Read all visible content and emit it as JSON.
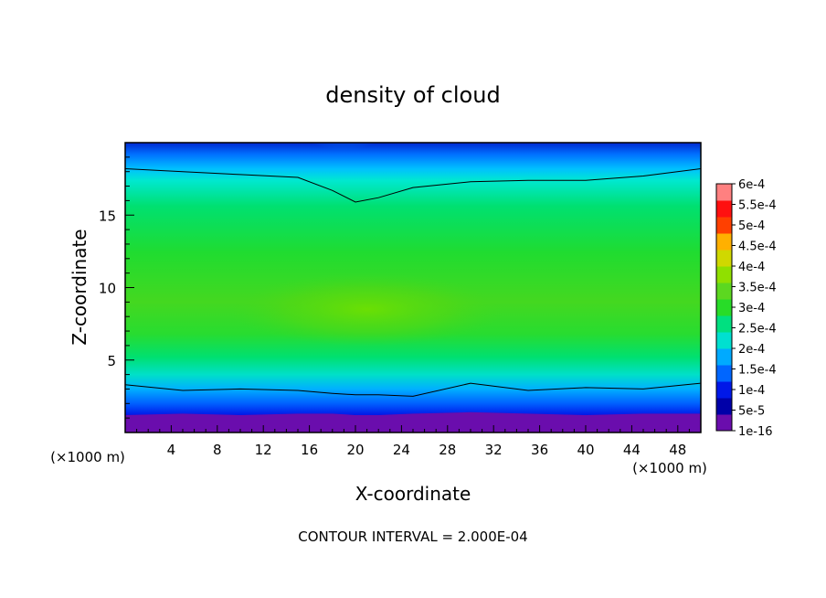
{
  "chart_data": {
    "type": "heatmap",
    "title": "density of cloud",
    "xlabel": "X-coordinate",
    "ylabel": "Z-coordinate",
    "x_unit": "(×1000 m)",
    "y_unit": "(×1000 m)",
    "xlim": [
      0,
      50
    ],
    "ylim": [
      0,
      20
    ],
    "x_ticks": [
      4,
      8,
      12,
      16,
      20,
      24,
      28,
      32,
      36,
      40,
      44,
      48
    ],
    "y_ticks": [
      5,
      10,
      15
    ],
    "colorbar": {
      "labels": [
        "1e-16",
        "5e-5",
        "1e-4",
        "1.5e-4",
        "2e-4",
        "2.5e-4",
        "3e-4",
        "3.5e-4",
        "4e-4",
        "4.5e-4",
        "5e-4",
        "5.5e-4",
        "6e-4"
      ],
      "colors": [
        "#6a0dad",
        "#0000a8",
        "#0018e8",
        "#0066ff",
        "#00aaff",
        "#00e0d0",
        "#00e080",
        "#28dc28",
        "#5cd820",
        "#90e000",
        "#d0d800",
        "#ffb000",
        "#ff4000",
        "#ff1010",
        "#ff8080"
      ]
    },
    "field": {
      "x": [
        0,
        5,
        10,
        15,
        18,
        20,
        22,
        25,
        30,
        35,
        40,
        45,
        50
      ],
      "ground_clear_z": [
        1.2,
        1.3,
        1.2,
        1.3,
        1.3,
        1.2,
        1.2,
        1.3,
        1.4,
        1.3,
        1.2,
        1.3,
        1.3
      ],
      "lower_contour_z": [
        3.3,
        2.9,
        3.0,
        2.9,
        2.7,
        2.6,
        2.6,
        2.5,
        3.4,
        2.9,
        3.1,
        3.0,
        3.4
      ],
      "upper_contour_z": [
        18.2,
        18.0,
        17.8,
        17.6,
        16.7,
        15.9,
        16.2,
        16.9,
        17.3,
        17.4,
        17.4,
        17.7,
        18.2
      ],
      "max_density": 0.0004,
      "max_location": {
        "x": 21,
        "z": 8.5
      },
      "min_density_top": 5e-05,
      "min_location_top": {
        "x": 19,
        "z": 20
      }
    },
    "annotation": "CONTOUR INTERVAL = 2.000E-04"
  }
}
